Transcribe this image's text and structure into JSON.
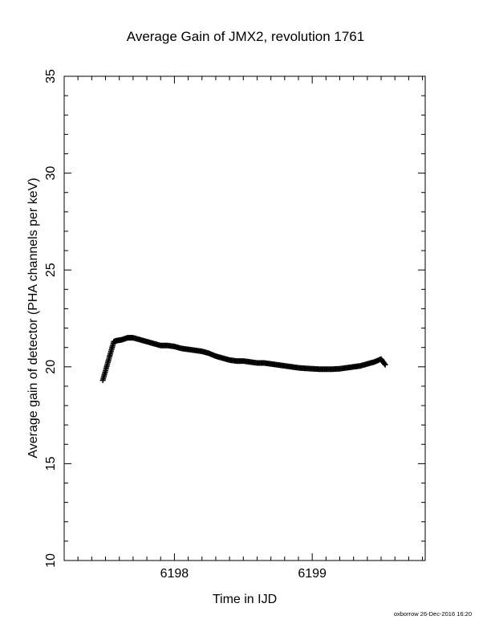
{
  "chart_data": {
    "type": "scatter",
    "title": "Average Gain of JMX2, revolution 1761",
    "xlabel": "Time in IJD",
    "ylabel": "Average gain of detector (PHA channels per keV)",
    "xlim": [
      6197.2,
      6199.82
    ],
    "ylim": [
      10,
      35
    ],
    "xticks": [
      6198,
      6199
    ],
    "yticks": [
      10,
      15,
      20,
      25,
      30,
      35
    ],
    "grid": false,
    "marker": "plus",
    "series": [
      {
        "x": [
          6197.48,
          6197.5,
          6197.52,
          6197.54,
          6197.56,
          6197.58,
          6197.62,
          6197.66,
          6197.7,
          6197.75,
          6197.8,
          6197.85,
          6197.9,
          6197.95,
          6198.0,
          6198.05,
          6198.1,
          6198.15,
          6198.2,
          6198.25,
          6198.3,
          6198.35,
          6198.4,
          6198.45,
          6198.5,
          6198.55,
          6198.6,
          6198.65,
          6198.7,
          6198.75,
          6198.8,
          6198.85,
          6198.9,
          6198.95,
          6199.0,
          6199.05,
          6199.1,
          6199.15,
          6199.2,
          6199.25,
          6199.3,
          6199.35,
          6199.4,
          6199.45,
          6199.5,
          6199.53
        ],
        "y": [
          19.3,
          19.8,
          20.3,
          20.8,
          21.3,
          21.35,
          21.4,
          21.5,
          21.5,
          21.4,
          21.3,
          21.2,
          21.1,
          21.1,
          21.05,
          20.95,
          20.9,
          20.85,
          20.8,
          20.7,
          20.55,
          20.45,
          20.35,
          20.3,
          20.3,
          20.25,
          20.2,
          20.2,
          20.15,
          20.1,
          20.05,
          20.0,
          19.95,
          19.92,
          19.9,
          19.88,
          19.88,
          19.88,
          19.9,
          19.95,
          20.0,
          20.05,
          20.15,
          20.25,
          20.4,
          20.1
        ]
      }
    ]
  },
  "footer": "oxborrow 26-Dec-2016 16:20"
}
